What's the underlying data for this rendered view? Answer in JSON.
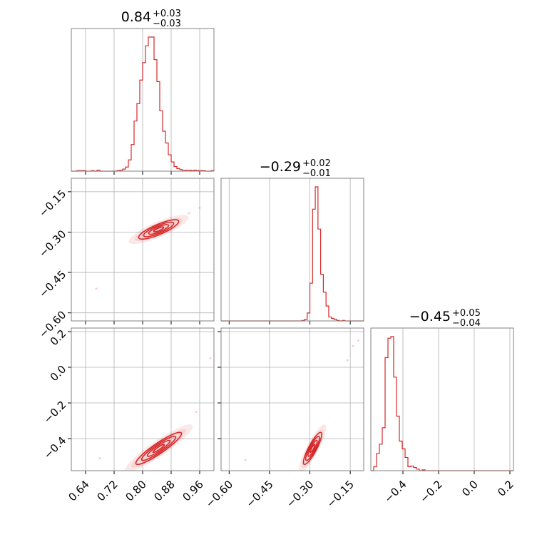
{
  "chart_data": {
    "type": "corner",
    "color": "#d62728",
    "grid": true,
    "parameters": [
      {
        "index": 0,
        "title": {
          "value": "0.84",
          "plus": "+0.03",
          "minus": "−0.03"
        },
        "range": [
          0.6,
          1.0
        ],
        "ticks": [
          0.64,
          0.72,
          0.8,
          0.88,
          0.96
        ],
        "tick_labels": [
          "0.64",
          "0.72",
          "0.80",
          "0.88",
          "0.96"
        ],
        "hist": {
          "bin_width": 0.008,
          "bin_start": 0.6,
          "counts": [
            0,
            0,
            1,
            1,
            1,
            0,
            0,
            1,
            0,
            2,
            0,
            0,
            0,
            0,
            0,
            0,
            1,
            2,
            4,
            8,
            22,
            52,
            98,
            132,
            178,
            212,
            245,
            262,
            262,
            218,
            175,
            118,
            78,
            55,
            32,
            18,
            9,
            5,
            3,
            1,
            2,
            2,
            1,
            2,
            1,
            1,
            1,
            0,
            0,
            1
          ]
        }
      },
      {
        "index": 1,
        "title": {
          "value": "−0.29",
          "plus": "+0.02",
          "minus": "−0.01"
        },
        "range": [
          -0.63,
          -0.1
        ],
        "ticks": [
          -0.6,
          -0.45,
          -0.3,
          -0.15
        ],
        "tick_labels": [
          "−0.60",
          "−0.45",
          "−0.30",
          "−0.15"
        ],
        "hist": {
          "bin_width": 0.01,
          "bin_start": -0.63,
          "counts": [
            0,
            0,
            0,
            0,
            0,
            0,
            0,
            0,
            0,
            0,
            0,
            0,
            0,
            0,
            0,
            0,
            0,
            0,
            0,
            0,
            0,
            0,
            0,
            0,
            0,
            0,
            0,
            0,
            0,
            0,
            1,
            3,
            16,
            76,
            225,
            270,
            185,
            94,
            58,
            30,
            8,
            5,
            3,
            1,
            0,
            1,
            0,
            0,
            0,
            0,
            0,
            0,
            0
          ]
        }
      },
      {
        "index": 2,
        "title": {
          "value": "−0.45",
          "plus": "+0.05",
          "minus": "−0.04"
        },
        "range": [
          -0.58,
          0.22
        ],
        "ticks": [
          -0.4,
          -0.2,
          0.0,
          0.2
        ],
        "tick_labels": [
          "−0.4",
          "−0.2",
          "0.0",
          "0.2"
        ],
        "hist": {
          "bin_width": 0.016,
          "bin_start": -0.58,
          "counts": [
            0,
            5,
            22,
            34,
            55,
            145,
            170,
            172,
            120,
            70,
            38,
            28,
            17,
            5,
            6,
            4,
            2,
            0,
            1,
            0,
            0,
            0,
            0,
            0,
            0,
            0,
            0,
            0,
            0,
            0,
            0,
            0,
            0,
            0,
            0,
            0,
            0,
            0,
            0,
            0,
            0,
            0,
            0,
            0,
            0,
            0,
            0,
            0,
            0,
            0
          ]
        }
      }
    ],
    "pairs": [
      {
        "x_param": 0,
        "y_param": 1,
        "mean": [
          0.845,
          -0.29
        ],
        "sigma": [
          0.028,
          0.018
        ],
        "rho": 0.82,
        "outliers": [
          [
            0.67,
            -0.51
          ],
          [
            0.96,
            -0.21
          ],
          [
            0.93,
            -0.23
          ]
        ]
      },
      {
        "x_param": 0,
        "y_param": 2,
        "mean": [
          0.845,
          -0.455
        ],
        "sigma": [
          0.032,
          0.045
        ],
        "rho": 0.92,
        "outliers": [
          [
            0.68,
            -0.51
          ],
          [
            0.99,
            0.05
          ],
          [
            0.95,
            -0.25
          ]
        ]
      },
      {
        "x_param": 1,
        "y_param": 2,
        "mean": [
          -0.29,
          -0.455
        ],
        "sigma": [
          0.017,
          0.045
        ],
        "rho": 0.87,
        "outliers": [
          [
            -0.54,
            -0.52
          ],
          [
            -0.16,
            0.04
          ],
          [
            -0.12,
            0.15
          ],
          [
            -0.14,
            0.12
          ]
        ]
      }
    ]
  }
}
